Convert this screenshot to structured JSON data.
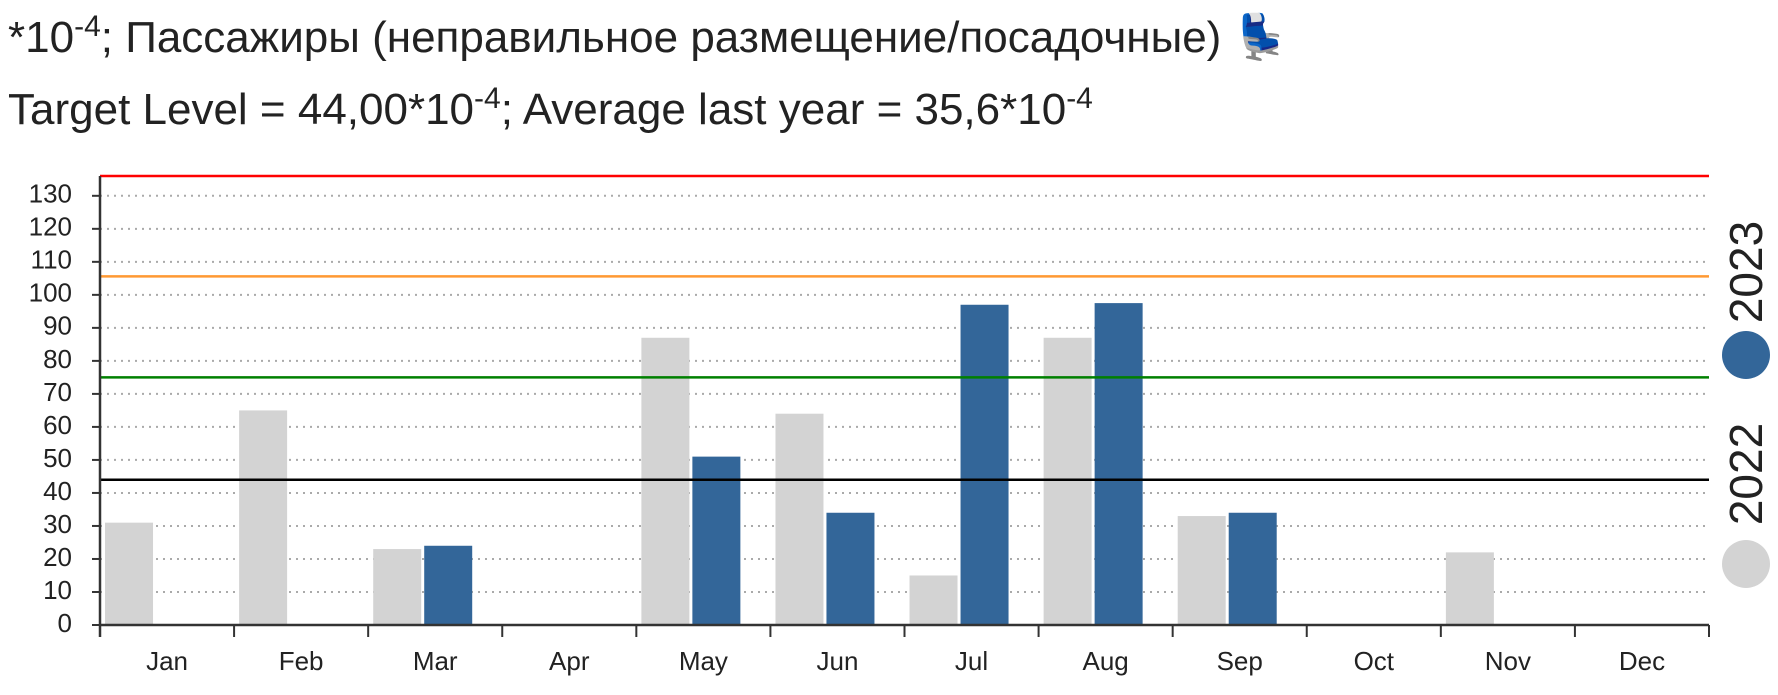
{
  "chart_data": {
    "type": "bar",
    "title_parts": [
      {
        "text": "*10"
      },
      {
        "text": "-4",
        "sup": true
      },
      {
        "text": "; Пассажиры (неправильное размещение/посадочные) 💺"
      }
    ],
    "subtitle_parts": [
      {
        "text": "Target Level = 44,00*10"
      },
      {
        "text": "-4",
        "sup": true
      },
      {
        "text": "; Average last year = 35,6*10"
      },
      {
        "text": "-4",
        "sup": true
      }
    ],
    "categories": [
      "Jan",
      "Feb",
      "Mar",
      "Apr",
      "May",
      "Jun",
      "Jul",
      "Aug",
      "Sep",
      "Oct",
      "Nov",
      "Dec"
    ],
    "series": [
      {
        "name": "2022",
        "color": "#d3d3d3",
        "values": [
          31,
          65,
          23,
          null,
          87,
          64,
          15,
          87,
          33,
          null,
          22,
          null
        ]
      },
      {
        "name": "2023",
        "color": "#336699",
        "values": [
          null,
          null,
          24,
          null,
          51,
          34,
          97,
          97.5,
          34,
          null,
          null,
          null
        ]
      }
    ],
    "reference_lines": [
      {
        "value": 44,
        "color": "#000000"
      },
      {
        "value": 75,
        "color": "#008000"
      },
      {
        "value": 105.6,
        "color": "#ff9933"
      },
      {
        "value": 136,
        "color": "#ff0000"
      }
    ],
    "ylim": [
      0,
      136
    ],
    "yticks": [
      0,
      10,
      20,
      30,
      40,
      50,
      60,
      70,
      80,
      90,
      100,
      110,
      120,
      130
    ],
    "grid": true,
    "legend": "right"
  }
}
